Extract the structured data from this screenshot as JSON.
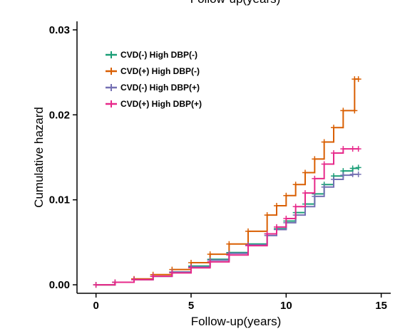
{
  "chart_data": {
    "type": "line",
    "step": true,
    "title_clipped": "Follow-up(years)",
    "xlabel": "Follow-up(years)",
    "ylabel": "Cumulative hazard",
    "xlim": [
      -1,
      15.5
    ],
    "ylim": [
      -0.001,
      0.031
    ],
    "xticks": [
      0,
      5,
      10,
      15
    ],
    "xtick_labels": [
      "0",
      "5",
      "10",
      "15"
    ],
    "yticks": [
      0.0,
      0.01,
      0.02,
      0.03
    ],
    "ytick_labels": [
      "0.00",
      "0.01",
      "0.02",
      "0.03"
    ],
    "grid": false,
    "legend_position": "top-left",
    "censor_marker": "+",
    "series": [
      {
        "name": "CVD(-) High DBP(-)",
        "color": "#1b9e77",
        "x": [
          0,
          1,
          2,
          3,
          4,
          5,
          6,
          7,
          8,
          9,
          9.5,
          10,
          10.5,
          11,
          11.5,
          12,
          12.5,
          13,
          13.5,
          13.8
        ],
        "y": [
          0,
          0.0003,
          0.0006,
          0.001,
          0.0015,
          0.0022,
          0.003,
          0.0038,
          0.0048,
          0.006,
          0.0066,
          0.0075,
          0.0085,
          0.0095,
          0.0107,
          0.0118,
          0.0128,
          0.0134,
          0.0137,
          0.0138
        ]
      },
      {
        "name": "CVD(+) High DBP(-)",
        "color": "#d95f02",
        "x": [
          0,
          1,
          2,
          3,
          4,
          5,
          6,
          7,
          8,
          9,
          9.5,
          10,
          10.5,
          11,
          11.5,
          12,
          12.5,
          13,
          13.6,
          13.6,
          13.8
        ],
        "y": [
          0,
          0.0003,
          0.0007,
          0.0012,
          0.0018,
          0.0026,
          0.0036,
          0.0048,
          0.0063,
          0.0082,
          0.0093,
          0.0105,
          0.0118,
          0.0132,
          0.0148,
          0.0168,
          0.0185,
          0.0205,
          0.0205,
          0.0242,
          0.0242
        ]
      },
      {
        "name": "CVD(-) High DBP(+)",
        "color": "#7570b3",
        "x": [
          0,
          1,
          2,
          3,
          4,
          5,
          6,
          7,
          8,
          9,
          9.5,
          10,
          10.5,
          11,
          11.5,
          12,
          12.5,
          13,
          13.5,
          13.8
        ],
        "y": [
          0,
          0.0003,
          0.0006,
          0.001,
          0.0015,
          0.0021,
          0.0029,
          0.0037,
          0.0047,
          0.0058,
          0.0065,
          0.0073,
          0.0082,
          0.0092,
          0.0104,
          0.0115,
          0.0124,
          0.0129,
          0.013,
          0.013
        ]
      },
      {
        "name": "CVD(+) High DBP(+)",
        "color": "#e7298a",
        "x": [
          0,
          1,
          2,
          3,
          4,
          5,
          6,
          7,
          8,
          9,
          9.5,
          10,
          10.5,
          11,
          11.5,
          12,
          12.5,
          13,
          13.5,
          13.8
        ],
        "y": [
          0,
          0.0003,
          0.0006,
          0.001,
          0.0014,
          0.002,
          0.0027,
          0.0035,
          0.0046,
          0.006,
          0.0068,
          0.0078,
          0.0092,
          0.0108,
          0.0125,
          0.0142,
          0.0155,
          0.016,
          0.016,
          0.016
        ]
      }
    ]
  }
}
